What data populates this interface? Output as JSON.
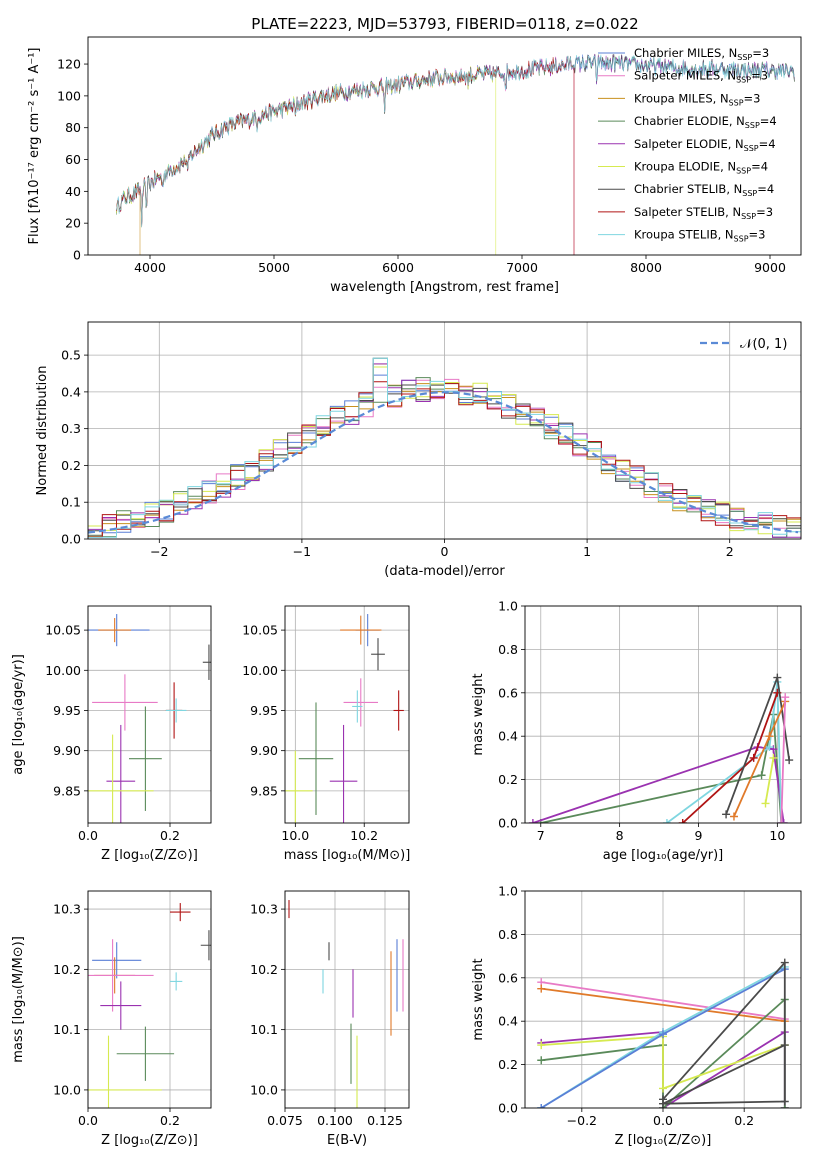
{
  "figure_title": "PLATE=2223, MJD=53793, FIBERID=0118, z=0.022",
  "colors": {
    "chabrier_miles": "#5a7fd6",
    "salpeter_miles": "#e07a2a",
    "kroupa_miles": "#c8901e",
    "chabrier_elodie": "#5a8a5a",
    "salpeter_elodie": "#9a32b0",
    "kroupa_elodie": "#d6ea50",
    "chabrier_stelib": "#4a4a4a",
    "salpeter_stelib": "#b01414",
    "kroupa_stelib": "#7fd6e0",
    "pink": "#e87ac6",
    "normal_curve": "#5a8ad6",
    "grid": "#b0b0b0"
  },
  "chart_data": [
    {
      "id": "spectrum",
      "type": "line",
      "title": "PLATE=2223, MJD=53793, FIBERID=0118, z=0.022",
      "xlabel": "wavelength [Angstrom, rest frame]",
      "ylabel": "Flux [fλ10⁻¹⁷ erg cm⁻² s⁻¹ A⁻¹]",
      "xlim": [
        3500,
        9250
      ],
      "ylim": [
        0,
        137
      ],
      "xticks": [
        4000,
        5000,
        6000,
        7000,
        8000,
        9000
      ],
      "yticks": [
        0,
        20,
        40,
        60,
        80,
        100,
        120
      ],
      "grid": false,
      "legend_position": "top-right",
      "series": [
        {
          "name": "Chabrier MILES, N",
          "sub": "SSP",
          "suffix": "=3",
          "color": "#5a7fd6"
        },
        {
          "name": "Salpeter MILES, N",
          "sub": "SSP",
          "suffix": "=3",
          "color": "#e87ac6"
        },
        {
          "name": "Kroupa MILES, N",
          "sub": "SSP",
          "suffix": "=3",
          "color": "#c8901e"
        },
        {
          "name": "Chabrier ELODIE, N",
          "sub": "SSP",
          "suffix": "=4",
          "color": "#5a8a5a"
        },
        {
          "name": "Salpeter ELODIE, N",
          "sub": "SSP",
          "suffix": "=4",
          "color": "#9a32b0"
        },
        {
          "name": "Kroupa ELODIE, N",
          "sub": "SSP",
          "suffix": "=4",
          "color": "#d6ea50"
        },
        {
          "name": "Chabrier STELIB, N",
          "sub": "SSP",
          "suffix": "=4",
          "color": "#4a4a4a"
        },
        {
          "name": "Salpeter STELIB, N",
          "sub": "SSP",
          "suffix": "=3",
          "color": "#b01414"
        },
        {
          "name": "Kroupa STELIB, N",
          "sub": "SSP",
          "suffix": "=3",
          "color": "#7fd6e0"
        }
      ],
      "continuum": {
        "x": [
          3730,
          3800,
          3900,
          4000,
          4100,
          4200,
          4300,
          4400,
          4500,
          4600,
          4700,
          4800,
          4900,
          5000,
          5200,
          5400,
          5600,
          5800,
          6000,
          6200,
          6400,
          6600,
          6800,
          7000,
          7200,
          7400,
          7600,
          7800,
          8000,
          8200,
          8400,
          8600,
          8800,
          9000,
          9200
        ],
        "y": [
          30,
          36,
          40,
          45,
          50,
          55,
          60,
          68,
          75,
          80,
          83,
          85,
          88,
          90,
          95,
          100,
          103,
          105,
          107,
          110,
          112,
          113,
          114,
          116,
          118,
          120,
          121,
          120,
          119,
          118,
          117,
          117,
          116,
          116,
          115
        ]
      },
      "truncation": [
        {
          "series": "Kroupa MILES, N",
          "end_x": 3920
        },
        {
          "series": "Kroupa ELODIE, N",
          "end_x": 6790
        },
        {
          "series": "Salpeter STELIB, N",
          "end_x": 7420
        },
        {
          "series": "Salpeter MILES, N",
          "end_x": 7420
        }
      ]
    },
    {
      "id": "residuals",
      "type": "bar",
      "xlabel": "(data-model)/error",
      "ylabel": "Normed distribution",
      "xlim": [
        -2.5,
        2.5
      ],
      "ylim": [
        0,
        0.59
      ],
      "xticks": [
        -2,
        -1,
        0,
        1,
        2
      ],
      "yticks": [
        0.0,
        0.1,
        0.2,
        0.3,
        0.4,
        0.5
      ],
      "grid": true,
      "legend_position": "top-right",
      "legend_label": "𝒩(0, 1)",
      "bin_width": 0.1,
      "reference_curve": {
        "name": "𝒩(0, 1)",
        "mean": 0,
        "sigma": 1
      }
    },
    {
      "id": "age_vs_Z",
      "type": "scatter",
      "xlabel": "Z [log₁₀(Z/Z⊙)]",
      "ylabel": "age  [log₁₀(age/yr)]",
      "xlim": [
        0.0,
        0.3
      ],
      "ylim": [
        9.81,
        10.08
      ],
      "xticks": [
        0.0,
        0.2
      ],
      "yticks": [
        9.85,
        9.9,
        9.95,
        10.0,
        10.05
      ],
      "grid": true,
      "points": [
        {
          "color": "#5a7fd6",
          "x": 0.07,
          "xerr": 0.08,
          "y": 10.05,
          "yerr": 0.02
        },
        {
          "color": "#e07a2a",
          "x": 0.065,
          "xerr": 0.04,
          "y": 10.05,
          "yerr": 0.015
        },
        {
          "color": "#e87ac6",
          "x": 0.09,
          "xerr": 0.08,
          "y": 9.96,
          "yerr": 0.035
        },
        {
          "color": "#5a8a5a",
          "x": 0.14,
          "xerr": 0.04,
          "y": 9.89,
          "yerr": 0.065
        },
        {
          "color": "#9a32b0",
          "x": 0.08,
          "xerr": 0.035,
          "y": 9.862,
          "yerr": 0.07
        },
        {
          "color": "#d6ea50",
          "x": 0.06,
          "xerr": 0.1,
          "y": 9.85,
          "yerr": 0.07
        },
        {
          "color": "#4a4a4a",
          "x": 0.295,
          "xerr": 0.015,
          "y": 10.01,
          "yerr": 0.022
        },
        {
          "color": "#b01414",
          "x": 0.21,
          "xerr": 0.02,
          "y": 9.95,
          "yerr": 0.035
        },
        {
          "color": "#7fd6e0",
          "x": 0.215,
          "xerr": 0.025,
          "y": 9.95,
          "yerr": 0.015
        }
      ]
    },
    {
      "id": "age_vs_mass",
      "type": "scatter",
      "xlabel": "mass [log₁₀(M/M⊙)]",
      "ylabel": "",
      "xlim": [
        9.97,
        10.33
      ],
      "ylim": [
        9.81,
        10.08
      ],
      "xticks": [
        10.0,
        10.2
      ],
      "yticks": [
        9.85,
        9.9,
        9.95,
        10.0,
        10.05
      ],
      "grid": true,
      "points": [
        {
          "color": "#5a7fd6",
          "x": 10.21,
          "xerr": 0.035,
          "y": 10.05,
          "yerr": 0.02
        },
        {
          "color": "#e07a2a",
          "x": 10.19,
          "xerr": 0.06,
          "y": 10.05,
          "yerr": 0.018
        },
        {
          "color": "#e87ac6",
          "x": 10.19,
          "xerr": 0.05,
          "y": 9.96,
          "yerr": 0.03
        },
        {
          "color": "#5a8a5a",
          "x": 10.06,
          "xerr": 0.05,
          "y": 9.89,
          "yerr": 0.07
        },
        {
          "color": "#9a32b0",
          "x": 10.14,
          "xerr": 0.04,
          "y": 9.862,
          "yerr": 0.07
        },
        {
          "color": "#d6ea50",
          "x": 10.0,
          "xerr": 0.05,
          "y": 9.85,
          "yerr": 0.05
        },
        {
          "color": "#4a4a4a",
          "x": 10.24,
          "xerr": 0.02,
          "y": 10.02,
          "yerr": 0.02
        },
        {
          "color": "#b01414",
          "x": 10.3,
          "xerr": 0.015,
          "y": 9.95,
          "yerr": 0.025
        },
        {
          "color": "#7fd6e0",
          "x": 10.18,
          "xerr": 0.015,
          "y": 9.955,
          "yerr": 0.02
        }
      ]
    },
    {
      "id": "weight_vs_age",
      "type": "line",
      "xlabel": "age  [log₁₀(age/yr)]",
      "ylabel": "mass weight",
      "xlim": [
        6.8,
        10.3
      ],
      "ylim": [
        0,
        1.0
      ],
      "xticks": [
        7,
        8,
        9,
        10
      ],
      "yticks": [
        0.0,
        0.2,
        0.4,
        0.6,
        0.8,
        1.0
      ],
      "grid": true,
      "series": [
        {
          "color": "#5a8a5a",
          "x": [
            7.0,
            9.8,
            9.95,
            10.05
          ],
          "y": [
            0.0,
            0.22,
            0.5,
            0.0
          ]
        },
        {
          "color": "#9a32b0",
          "x": [
            6.9,
            9.75,
            9.95,
            10.08
          ],
          "y": [
            0.0,
            0.35,
            0.34,
            0.0
          ]
        },
        {
          "color": "#7fd6e0",
          "x": [
            8.6,
            9.9,
            10.0,
            10.05
          ],
          "y": [
            0.0,
            0.35,
            0.65,
            0.0
          ]
        },
        {
          "color": "#b01414",
          "x": [
            8.8,
            9.7,
            10.0
          ],
          "y": [
            0.0,
            0.3,
            0.6
          ]
        },
        {
          "color": "#4a4a4a",
          "x": [
            9.35,
            10.0,
            10.15
          ],
          "y": [
            0.04,
            0.67,
            0.29
          ]
        },
        {
          "color": "#e07a2a",
          "x": [
            9.45,
            9.9,
            10.1
          ],
          "y": [
            0.03,
            0.4,
            0.56
          ]
        },
        {
          "color": "#d6ea50",
          "x": [
            9.85,
            9.95
          ],
          "y": [
            0.09,
            0.3
          ]
        },
        {
          "color": "#e87ac6",
          "x": [
            10.05,
            10.1
          ],
          "y": [
            0.0,
            0.58
          ]
        }
      ]
    },
    {
      "id": "mass_vs_Z",
      "type": "scatter",
      "xlabel": "Z [log₁₀(Z/Z⊙)]",
      "ylabel": "mass [log₁₀(M/M⊙)]",
      "xlim": [
        0.0,
        0.3
      ],
      "ylim": [
        9.97,
        10.33
      ],
      "xticks": [
        0.0,
        0.2
      ],
      "yticks": [
        10.0,
        10.1,
        10.2,
        10.3
      ],
      "grid": true,
      "points": [
        {
          "color": "#5a7fd6",
          "x": 0.07,
          "xerr": 0.06,
          "y": 10.215,
          "yerr": 0.03
        },
        {
          "color": "#e07a2a",
          "x": 0.065,
          "xerr": 0.05,
          "y": 10.19,
          "yerr": 0.03
        },
        {
          "color": "#e87ac6",
          "x": 0.06,
          "xerr": 0.1,
          "y": 10.19,
          "yerr": 0.06
        },
        {
          "color": "#5a8a5a",
          "x": 0.14,
          "xerr": 0.07,
          "y": 10.06,
          "yerr": 0.045
        },
        {
          "color": "#9a32b0",
          "x": 0.08,
          "xerr": 0.05,
          "y": 10.14,
          "yerr": 0.04
        },
        {
          "color": "#d6ea50",
          "x": 0.05,
          "xerr": 0.13,
          "y": 10.0,
          "yerr": 0.09
        },
        {
          "color": "#4a4a4a",
          "x": 0.295,
          "xerr": 0.02,
          "y": 10.24,
          "yerr": 0.025
        },
        {
          "color": "#b01414",
          "x": 0.225,
          "xerr": 0.025,
          "y": 10.295,
          "yerr": 0.015
        },
        {
          "color": "#7fd6e0",
          "x": 0.215,
          "xerr": 0.015,
          "y": 10.18,
          "yerr": 0.015
        }
      ]
    },
    {
      "id": "mass_vs_ebv",
      "type": "scatter",
      "xlabel": "E(B-V)",
      "ylabel": "",
      "xlim": [
        0.075,
        0.137
      ],
      "ylim": [
        9.97,
        10.33
      ],
      "xticks": [
        0.075,
        0.1,
        0.125
      ],
      "yticks": [
        10.0,
        10.1,
        10.2,
        10.3
      ],
      "grid": true,
      "points": [
        {
          "color": "#b01414",
          "x": 0.077,
          "xerr": 0.0,
          "y": 10.3,
          "yerr": 0.015
        },
        {
          "color": "#4a4a4a",
          "x": 0.097,
          "xerr": 0.0,
          "y": 10.23,
          "yerr": 0.015
        },
        {
          "color": "#7fd6e0",
          "x": 0.094,
          "xerr": 0.0,
          "y": 10.18,
          "yerr": 0.02
        },
        {
          "color": "#9a32b0",
          "x": 0.109,
          "xerr": 0.0,
          "y": 10.16,
          "yerr": 0.04
        },
        {
          "color": "#5a8a5a",
          "x": 0.108,
          "xerr": 0.0,
          "y": 10.06,
          "yerr": 0.05
        },
        {
          "color": "#d6ea50",
          "x": 0.111,
          "xerr": 0.0,
          "y": 10.0,
          "yerr": 0.09
        },
        {
          "color": "#e07a2a",
          "x": 0.128,
          "xerr": 0.0,
          "y": 10.16,
          "yerr": 0.07
        },
        {
          "color": "#5a7fd6",
          "x": 0.131,
          "xerr": 0.0,
          "y": 10.19,
          "yerr": 0.06
        },
        {
          "color": "#e87ac6",
          "x": 0.134,
          "xerr": 0.0,
          "y": 10.19,
          "yerr": 0.06
        }
      ]
    },
    {
      "id": "weight_vs_Z",
      "type": "line",
      "xlabel": "Z [log₁₀(Z/Z⊙)]",
      "ylabel": "mass weight",
      "xlim": [
        -0.34,
        0.34
      ],
      "ylim": [
        0,
        1.0
      ],
      "xticks": [
        -0.2,
        0.0,
        0.2
      ],
      "yticks": [
        0.0,
        0.2,
        0.4,
        0.6,
        0.8,
        1.0
      ],
      "grid": true,
      "series": [
        {
          "color": "#e87ac6",
          "x": [
            -0.3,
            0.3
          ],
          "y": [
            0.58,
            0.41
          ]
        },
        {
          "color": "#e07a2a",
          "x": [
            -0.3,
            0.3
          ],
          "y": [
            0.55,
            0.4
          ]
        },
        {
          "color": "#9a32b0",
          "x": [
            -0.3,
            0.0,
            0.0,
            0.3,
            0.3
          ],
          "y": [
            0.3,
            0.35,
            0.0,
            0.35,
            0.0
          ]
        },
        {
          "color": "#5a8a5a",
          "x": [
            -0.3,
            0.0,
            0.0,
            0.3,
            0.3
          ],
          "y": [
            0.22,
            0.29,
            0.0,
            0.5,
            0.0
          ]
        },
        {
          "color": "#d6ea50",
          "x": [
            -0.3,
            0.0,
            0.0,
            0.3
          ],
          "y": [
            0.29,
            0.33,
            0.09,
            0.29
          ]
        },
        {
          "color": "#7fd6e0",
          "x": [
            -0.3,
            0.0,
            0.3
          ],
          "y": [
            0.0,
            0.35,
            0.65
          ]
        },
        {
          "color": "#5a7fd6",
          "x": [
            -0.3,
            0.0,
            0.3
          ],
          "y": [
            0.0,
            0.34,
            0.64
          ]
        },
        {
          "color": "#4a4a4a",
          "x": [
            0.0,
            0.3,
            0.3,
            0.0,
            0.3
          ],
          "y": [
            0.04,
            0.67,
            0.03,
            0.02,
            0.29
          ]
        }
      ]
    }
  ]
}
